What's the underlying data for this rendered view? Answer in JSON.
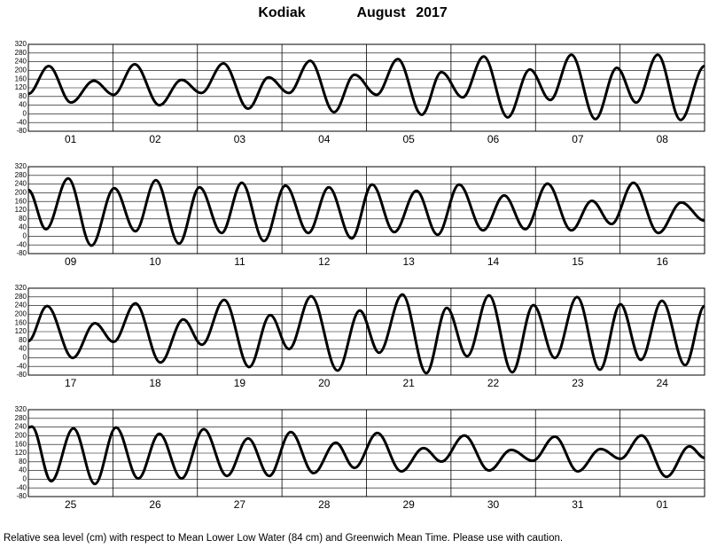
{
  "title_station": "Kodiak",
  "title_month": "August",
  "title_year": "2017",
  "footer": "Relative sea level (cm) with respect to Mean Lower Low Water (84 cm) and Greenwich Mean Time. Please use with caution.",
  "chart_data": [
    {
      "type": "line",
      "xlim": [
        0,
        192
      ],
      "ylim": [
        -80,
        320
      ],
      "yticks": [
        -80,
        -40,
        0,
        40,
        80,
        120,
        160,
        200,
        240,
        280,
        320
      ],
      "grid": true,
      "color": "#000000",
      "xticks": [
        {
          "value": 12,
          "label": "01"
        },
        {
          "value": 36,
          "label": "02"
        },
        {
          "value": 60,
          "label": "03"
        },
        {
          "value": 84,
          "label": "04"
        },
        {
          "value": 108,
          "label": "05"
        },
        {
          "value": 132,
          "label": "06"
        },
        {
          "value": 156,
          "label": "07"
        },
        {
          "value": 180,
          "label": "08"
        }
      ],
      "x": [
        0,
        5.8,
        12.1,
        18.6,
        24.2,
        30.2,
        37.2,
        43.5,
        49.1,
        55.4,
        62.4,
        68.2,
        74.0,
        80.0,
        86.8,
        92.6,
        98.9,
        104.9,
        111.7,
        117.3,
        123.3,
        129.3,
        136.1,
        142.4,
        148.2,
        154.2,
        161.0,
        167.1,
        172.6,
        178.7,
        185.2,
        192
      ],
      "values": [
        92,
        220,
        52,
        152,
        88,
        228,
        40,
        156,
        96,
        232,
        24,
        168,
        96,
        244,
        8,
        180,
        88,
        252,
        -4,
        192,
        76,
        264,
        -16,
        204,
        64,
        272,
        -24,
        212,
        52,
        272,
        -28,
        220
      ]
    },
    {
      "type": "line",
      "xlim": [
        0,
        192
      ],
      "ylim": [
        -80,
        320
      ],
      "yticks": [
        -80,
        -40,
        0,
        40,
        80,
        120,
        160,
        200,
        240,
        280,
        320
      ],
      "grid": true,
      "color": "#000000",
      "xticks": [
        {
          "value": 12,
          "label": "09"
        },
        {
          "value": 36,
          "label": "10"
        },
        {
          "value": 60,
          "label": "11"
        },
        {
          "value": 84,
          "label": "12"
        },
        {
          "value": 108,
          "label": "13"
        },
        {
          "value": 132,
          "label": "14"
        },
        {
          "value": 156,
          "label": "15"
        },
        {
          "value": 180,
          "label": "16"
        }
      ],
      "x": [
        0,
        5.0,
        11.3,
        17.9,
        24.4,
        30.4,
        36.2,
        42.8,
        48.6,
        54.9,
        60.6,
        66.9,
        73.0,
        79.5,
        85.3,
        91.8,
        97.6,
        103.9,
        110.2,
        116.2,
        122.3,
        129.1,
        135.1,
        141.1,
        147.4,
        154.2,
        160.0,
        165.6,
        171.8,
        178.9,
        185.4,
        192
      ],
      "values": [
        213,
        32,
        266,
        -43,
        221,
        23,
        258,
        -34,
        225,
        15,
        246,
        -22,
        233,
        15,
        225,
        -10,
        238,
        19,
        209,
        7,
        238,
        27,
        188,
        32,
        242,
        27,
        163,
        56,
        246,
        15,
        155,
        72
      ]
    },
    {
      "type": "line",
      "xlim": [
        0,
        192
      ],
      "ylim": [
        -80,
        320
      ],
      "yticks": [
        -80,
        -40,
        0,
        40,
        80,
        120,
        160,
        200,
        240,
        280,
        320
      ],
      "grid": true,
      "color": "#000000",
      "xticks": [
        {
          "value": 12,
          "label": "17"
        },
        {
          "value": 36,
          "label": "18"
        },
        {
          "value": 60,
          "label": "19"
        },
        {
          "value": 84,
          "label": "20"
        },
        {
          "value": 108,
          "label": "21"
        },
        {
          "value": 132,
          "label": "22"
        },
        {
          "value": 156,
          "label": "23"
        },
        {
          "value": 180,
          "label": "24"
        }
      ],
      "x": [
        0,
        5.3,
        12.6,
        18.9,
        24.2,
        30.4,
        37.5,
        44.0,
        49.3,
        55.6,
        62.7,
        68.7,
        74.0,
        80.3,
        87.8,
        94.1,
        99.6,
        106.2,
        113.0,
        118.8,
        124.6,
        130.8,
        137.4,
        143.4,
        149.5,
        155.8,
        162.3,
        168.1,
        173.9,
        179.9,
        186.5,
        192
      ],
      "values": [
        77,
        238,
        -1,
        159,
        73,
        250,
        -22,
        176,
        60,
        266,
        -43,
        196,
        40,
        283,
        -59,
        217,
        23,
        291,
        -71,
        229,
        7,
        287,
        -67,
        242,
        -1,
        279,
        -55,
        246,
        -10,
        262,
        -34,
        238
      ]
    },
    {
      "type": "line",
      "xlim": [
        0,
        192
      ],
      "ylim": [
        -80,
        320
      ],
      "yticks": [
        -80,
        -40,
        0,
        40,
        80,
        120,
        160,
        200,
        240,
        280,
        320
      ],
      "grid": true,
      "color": "#000000",
      "xticks": [
        {
          "value": 12,
          "label": "25"
        },
        {
          "value": 36,
          "label": "26"
        },
        {
          "value": 60,
          "label": "27"
        },
        {
          "value": 84,
          "label": "28"
        },
        {
          "value": 108,
          "label": "29"
        },
        {
          "value": 132,
          "label": "30"
        },
        {
          "value": 156,
          "label": "31"
        },
        {
          "value": 180,
          "label": "01"
        }
      ],
      "x": [
        0,
        1.0,
        6.5,
        12.8,
        18.9,
        24.9,
        31.2,
        37.2,
        43.5,
        49.8,
        56.4,
        62.4,
        68.4,
        74.5,
        81.0,
        87.3,
        92.6,
        99.1,
        105.9,
        112.2,
        117.3,
        123.8,
        130.8,
        137.1,
        143.2,
        149.5,
        156.0,
        162.5,
        168.1,
        174.1,
        181.2,
        187.7,
        192
      ],
      "values": [
        238,
        242,
        -9,
        234,
        -22,
        238,
        3,
        209,
        3,
        230,
        15,
        188,
        15,
        217,
        28,
        168,
        52,
        213,
        36,
        143,
        81,
        201,
        40,
        135,
        85,
        196,
        36,
        139,
        94,
        201,
        11,
        151,
        98
      ]
    }
  ]
}
